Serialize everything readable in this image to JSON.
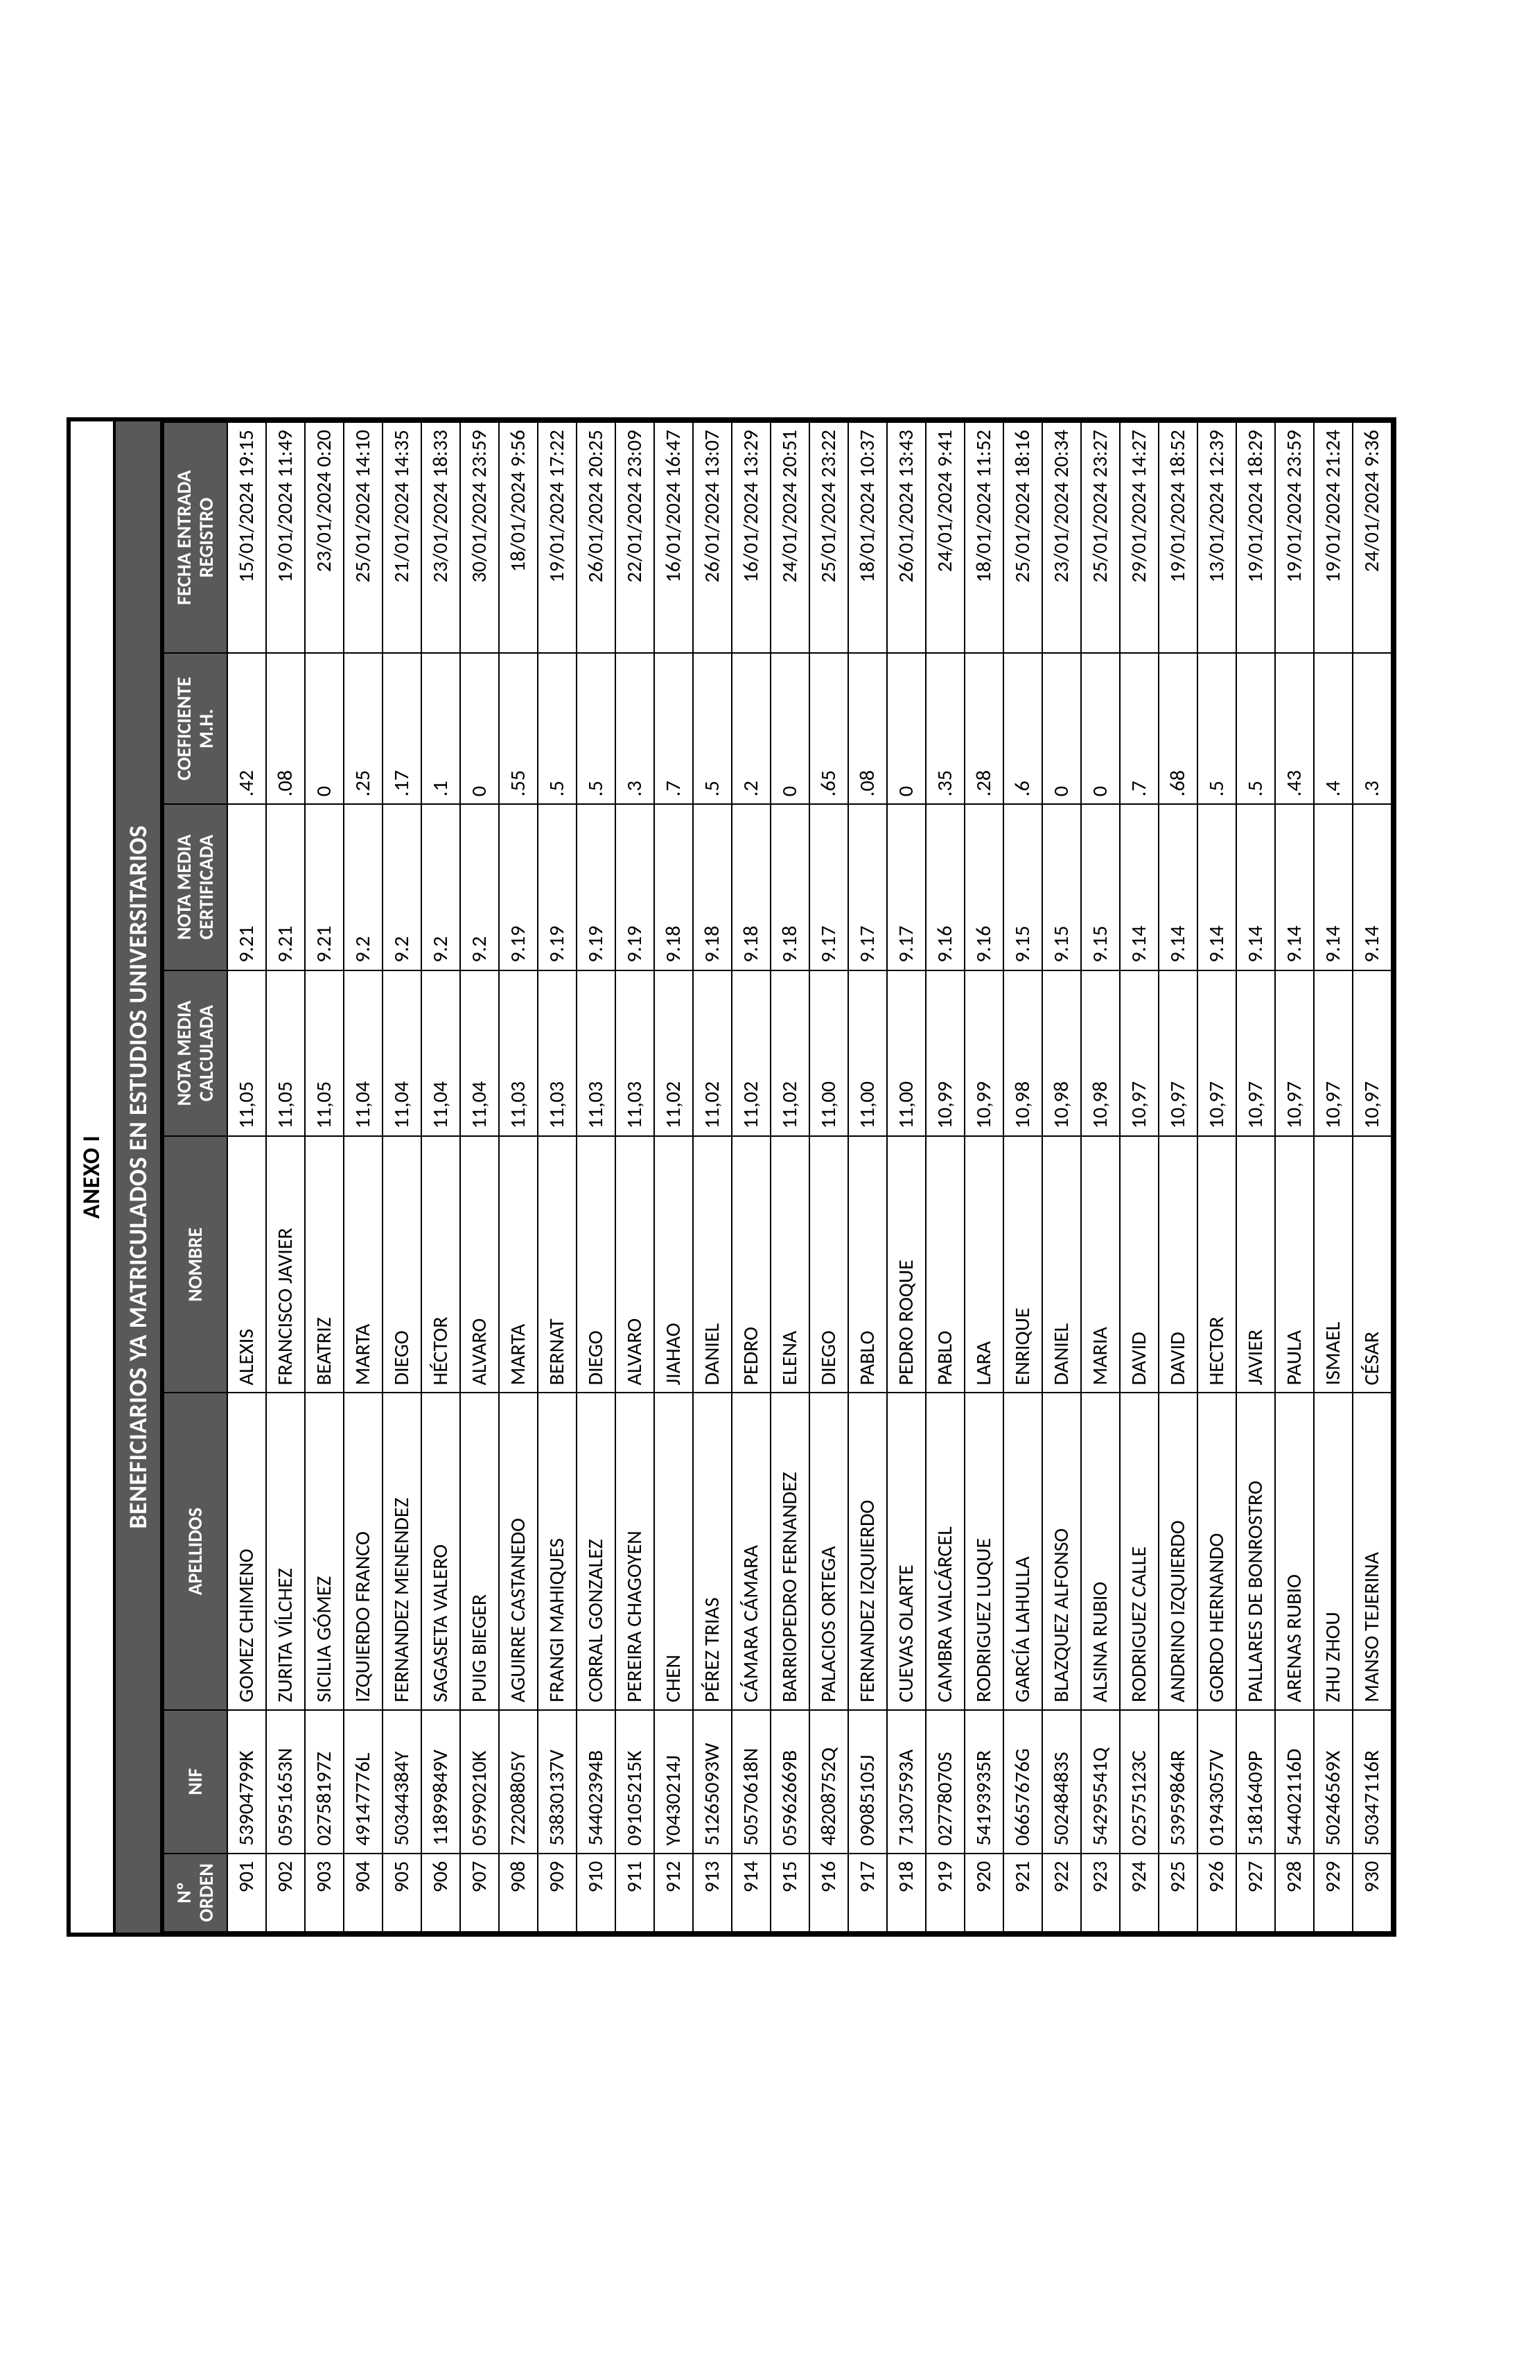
{
  "titles": {
    "annex": "ANEXO I",
    "subtitle": "BENEFICIARIOS YA MATRICULADOS EN ESTUDIOS UNIVERSITARIOS"
  },
  "columns": [
    "Nº ORDEN",
    "NIF",
    "APELLIDOS",
    "NOMBRE",
    "NOTA MEDIA CALCULADA",
    "NOTA MEDIA CERTIFICADA",
    "COEFICIENTE M.H.",
    "FECHA ENTRADA REGISTRO"
  ],
  "style": {
    "header_bg": "#595959",
    "header_fg": "#ffffff",
    "border_color": "#000000",
    "body_bg": "#ffffff",
    "font_family": "Calibri",
    "header_fontsize_pt": 11,
    "cell_fontsize_pt": 11,
    "col_align": [
      "right",
      "left",
      "left",
      "left",
      "left",
      "left",
      "left",
      "right"
    ]
  },
  "rows": [
    {
      "orden": "901",
      "nif": "53904799K",
      "apellidos": "GOMEZ CHIMENO",
      "nombre": "ALEXIS",
      "calc": "11,05",
      "cert": "9.21",
      "coef": ".42",
      "fecha": "15/01/2024 19:15"
    },
    {
      "orden": "902",
      "nif": "05951653N",
      "apellidos": "ZURITA VÍLCHEZ",
      "nombre": "FRANCISCO JAVIER",
      "calc": "11,05",
      "cert": "9.21",
      "coef": ".08",
      "fecha": "19/01/2024 11:49"
    },
    {
      "orden": "903",
      "nif": "02758197Z",
      "apellidos": "SICILIA GÓMEZ",
      "nombre": "BEATRIZ",
      "calc": "11,05",
      "cert": "9.21",
      "coef": "0",
      "fecha": "23/01/2024 0:20"
    },
    {
      "orden": "904",
      "nif": "49147776L",
      "apellidos": "IZQUIERDO FRANCO",
      "nombre": "MARTA",
      "calc": "11,04",
      "cert": "9.2",
      "coef": ".25",
      "fecha": "25/01/2024 14:10"
    },
    {
      "orden": "905",
      "nif": "50344384Y",
      "apellidos": "FERNANDEZ MENENDEZ",
      "nombre": "DIEGO",
      "calc": "11,04",
      "cert": "9.2",
      "coef": ".17",
      "fecha": "21/01/2024 14:35"
    },
    {
      "orden": "906",
      "nif": "11899849V",
      "apellidos": "SAGASETA VALERO",
      "nombre": "HÉCTOR",
      "calc": "11,04",
      "cert": "9.2",
      "coef": ".1",
      "fecha": "23/01/2024 18:33"
    },
    {
      "orden": "907",
      "nif": "05990210K",
      "apellidos": "PUIG BIEGER",
      "nombre": "ALVARO",
      "calc": "11,04",
      "cert": "9.2",
      "coef": "0",
      "fecha": "30/01/2024 23:59"
    },
    {
      "orden": "908",
      "nif": "72208805Y",
      "apellidos": "AGUIRRE CASTANEDO",
      "nombre": "MARTA",
      "calc": "11,03",
      "cert": "9.19",
      "coef": ".55",
      "fecha": "18/01/2024 9:56"
    },
    {
      "orden": "909",
      "nif": "53830137V",
      "apellidos": "FRANGI MAHIQUES",
      "nombre": "BERNAT",
      "calc": "11,03",
      "cert": "9.19",
      "coef": ".5",
      "fecha": "19/01/2024 17:22"
    },
    {
      "orden": "910",
      "nif": "54402394B",
      "apellidos": "CORRAL GONZALEZ",
      "nombre": "DIEGO",
      "calc": "11,03",
      "cert": "9.19",
      "coef": ".5",
      "fecha": "26/01/2024 20:25"
    },
    {
      "orden": "911",
      "nif": "09105215K",
      "apellidos": "PEREIRA CHAGOYEN",
      "nombre": "ALVARO",
      "calc": "11,03",
      "cert": "9.19",
      "coef": ".3",
      "fecha": "22/01/2024 23:09"
    },
    {
      "orden": "912",
      "nif": "Y0430214J",
      "apellidos": "CHEN",
      "nombre": "JIAHAO",
      "calc": "11,02",
      "cert": "9.18",
      "coef": ".7",
      "fecha": "16/01/2024 16:47"
    },
    {
      "orden": "913",
      "nif": "51265093W",
      "apellidos": "PÉREZ TRIAS",
      "nombre": "DANIEL",
      "calc": "11,02",
      "cert": "9.18",
      "coef": ".5",
      "fecha": "26/01/2024 13:07"
    },
    {
      "orden": "914",
      "nif": "50570618N",
      "apellidos": "CÁMARA CÁMARA",
      "nombre": "PEDRO",
      "calc": "11,02",
      "cert": "9.18",
      "coef": ".2",
      "fecha": "16/01/2024 13:29"
    },
    {
      "orden": "915",
      "nif": "05962669B",
      "apellidos": "BARRIOPEDRO FERNANDEZ",
      "nombre": "ELENA",
      "calc": "11,02",
      "cert": "9.18",
      "coef": "0",
      "fecha": "24/01/2024 20:51"
    },
    {
      "orden": "916",
      "nif": "48208752Q",
      "apellidos": "PALACIOS ORTEGA",
      "nombre": "DIEGO",
      "calc": "11,00",
      "cert": "9.17",
      "coef": ".65",
      "fecha": "25/01/2024 23:22"
    },
    {
      "orden": "917",
      "nif": "09085105J",
      "apellidos": "FERNANDEZ IZQUIERDO",
      "nombre": "PABLO",
      "calc": "11,00",
      "cert": "9.17",
      "coef": ".08",
      "fecha": "18/01/2024 10:37"
    },
    {
      "orden": "918",
      "nif": "71307593A",
      "apellidos": "CUEVAS OLARTE",
      "nombre": "PEDRO ROQUE",
      "calc": "11,00",
      "cert": "9.17",
      "coef": "0",
      "fecha": "26/01/2024 13:43"
    },
    {
      "orden": "919",
      "nif": "02778070S",
      "apellidos": "CAMBRA VALCÁRCEL",
      "nombre": "PABLO",
      "calc": "10,99",
      "cert": "9.16",
      "coef": ".35",
      "fecha": "24/01/2024 9:41"
    },
    {
      "orden": "920",
      "nif": "54193935R",
      "apellidos": "RODRIGUEZ LUQUE",
      "nombre": "LARA",
      "calc": "10,99",
      "cert": "9.16",
      "coef": ".28",
      "fecha": "18/01/2024 11:52"
    },
    {
      "orden": "921",
      "nif": "06657676G",
      "apellidos": "GARCÍA LAHULLA",
      "nombre": "ENRIQUE",
      "calc": "10,98",
      "cert": "9.15",
      "coef": ".6",
      "fecha": "25/01/2024 18:16"
    },
    {
      "orden": "922",
      "nif": "50248483S",
      "apellidos": "BLAZQUEZ ALFONSO",
      "nombre": "DANIEL",
      "calc": "10,98",
      "cert": "9.15",
      "coef": "0",
      "fecha": "23/01/2024 20:34"
    },
    {
      "orden": "923",
      "nif": "54295541Q",
      "apellidos": "ALSINA RUBIO",
      "nombre": "MARIA",
      "calc": "10,98",
      "cert": "9.15",
      "coef": "0",
      "fecha": "25/01/2024 23:27"
    },
    {
      "orden": "924",
      "nif": "02575123C",
      "apellidos": "RODRIGUEZ CALLE",
      "nombre": "DAVID",
      "calc": "10,97",
      "cert": "9.14",
      "coef": ".7",
      "fecha": "29/01/2024 14:27"
    },
    {
      "orden": "925",
      "nif": "53959864R",
      "apellidos": "ANDRINO IZQUIERDO",
      "nombre": "DAVID",
      "calc": "10,97",
      "cert": "9.14",
      "coef": ".68",
      "fecha": "19/01/2024 18:52"
    },
    {
      "orden": "926",
      "nif": "01943057V",
      "apellidos": "GORDO HERNANDO",
      "nombre": "HECTOR",
      "calc": "10,97",
      "cert": "9.14",
      "coef": ".5",
      "fecha": "13/01/2024 12:39"
    },
    {
      "orden": "927",
      "nif": "51816409P",
      "apellidos": "PALLARES DE BONROSTRO",
      "nombre": "JAVIER",
      "calc": "10,97",
      "cert": "9.14",
      "coef": ".5",
      "fecha": "19/01/2024 18:29"
    },
    {
      "orden": "928",
      "nif": "54402116D",
      "apellidos": "ARENAS RUBIO",
      "nombre": "PAULA",
      "calc": "10,97",
      "cert": "9.14",
      "coef": ".43",
      "fecha": "19/01/2024 23:59"
    },
    {
      "orden": "929",
      "nif": "50246569X",
      "apellidos": "ZHU ZHOU",
      "nombre": "ISMAEL",
      "calc": "10,97",
      "cert": "9.14",
      "coef": ".4",
      "fecha": "19/01/2024 21:24"
    },
    {
      "orden": "930",
      "nif": "50347116R",
      "apellidos": "MANSO TEJERINA",
      "nombre": "CÉSAR",
      "calc": "10,97",
      "cert": "9.14",
      "coef": ".3",
      "fecha": "24/01/2024 9:36"
    }
  ]
}
